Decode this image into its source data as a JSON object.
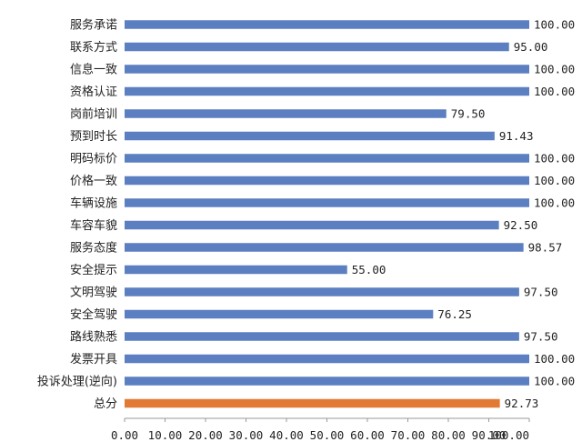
{
  "chart_data": {
    "type": "bar",
    "orientation": "horizontal",
    "categories": [
      "服务承诺",
      "联系方式",
      "信息一致",
      "资格认证",
      "岗前培训",
      "预到时长",
      "明码标价",
      "价格一致",
      "车辆设施",
      "车容车貌",
      "服务态度",
      "安全提示",
      "文明驾驶",
      "安全驾驶",
      "路线熟悉",
      "发票开具",
      "投诉处理(逆向)",
      "总分"
    ],
    "values": [
      100,
      95,
      100,
      100,
      79.5,
      91.43,
      100,
      100,
      100,
      92.5,
      98.57,
      55,
      97.5,
      76.25,
      97.5,
      100,
      100,
      92.73
    ],
    "value_labels": [
      "100.00",
      "95.00",
      "100.00",
      "100.00",
      "79.50",
      "91.43",
      "100.00",
      "100.00",
      "100.00",
      "92.50",
      "98.57",
      "55.00",
      "97.50",
      "76.25",
      "97.50",
      "100.00",
      "100.00",
      "92.73"
    ],
    "xlim": [
      0,
      100
    ],
    "x_ticks": [
      "0.00",
      "10.00",
      "20.00",
      "30.00",
      "40.00",
      "50.00",
      "60.00",
      "70.00",
      "80.00",
      "90.00",
      "100.00"
    ],
    "grid": false,
    "legend": "none",
    "colors": {
      "bar": "#5b7fc1",
      "highlight": "#e07a35",
      "axis": "#9a9a9a"
    },
    "highlight_category": "总分"
  }
}
